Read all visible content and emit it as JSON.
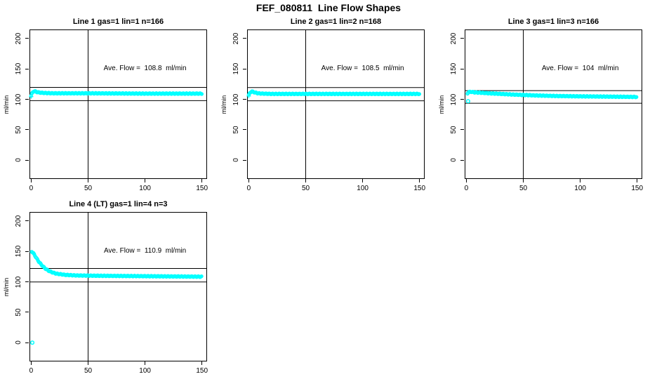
{
  "window": {
    "title": "FEF_080811  Line Flow Shapes"
  },
  "colors": {
    "series": "#00ffff",
    "axis": "#000000",
    "background": "#ffffff"
  },
  "axes": {
    "xticks": [
      0,
      50,
      100,
      150
    ],
    "yticks": [
      0,
      50,
      100,
      150,
      200
    ],
    "xlim": [
      -1.5,
      154.5
    ],
    "ylim": [
      -31,
      215
    ],
    "ylabel": "ml/min",
    "xlabel": "",
    "vline_x": 50,
    "annotation_anchor": [
      100,
      150
    ],
    "grid": false
  },
  "chart_data": [
    {
      "type": "scatter",
      "title": "Line 1 gas=1 lin=1 n=166",
      "annotation": "Ave. Flow =  108.8  ml/min",
      "ave_flow": 108.8,
      "n": 166,
      "hlines": [
        97.9,
        119.7
      ],
      "marker_start": "plus",
      "profile": [
        [
          0,
          106
        ],
        [
          1,
          111
        ],
        [
          2,
          113
        ],
        [
          3,
          113.5
        ],
        [
          5,
          112
        ],
        [
          8,
          111
        ],
        [
          12,
          110.5
        ],
        [
          20,
          110
        ],
        [
          50,
          110
        ],
        [
          100,
          109.5
        ],
        [
          150,
          109.5
        ]
      ],
      "outliers": []
    },
    {
      "type": "scatter",
      "title": "Line 2 gas=1 lin=2 n=168",
      "annotation": "Ave. Flow =  108.5  ml/min",
      "ave_flow": 108.5,
      "n": 168,
      "hlines": [
        97.7,
        119.4
      ],
      "marker_start": "plus",
      "profile": [
        [
          0,
          107
        ],
        [
          1,
          111
        ],
        [
          2,
          112.5
        ],
        [
          3,
          113
        ],
        [
          5,
          111.5
        ],
        [
          8,
          110
        ],
        [
          12,
          109.5
        ],
        [
          20,
          109
        ],
        [
          50,
          109
        ],
        [
          100,
          109
        ],
        [
          150,
          109
        ]
      ],
      "outliers": []
    },
    {
      "type": "scatter",
      "title": "Line 3 gas=1 lin=3 n=166",
      "annotation": "Ave. Flow =  104  ml/min",
      "ave_flow": 104,
      "n": 166,
      "hlines": [
        93.6,
        114.4
      ],
      "marker_start": null,
      "profile": [
        [
          1,
          110
        ],
        [
          2,
          112
        ],
        [
          4,
          112.5
        ],
        [
          7,
          111.5
        ],
        [
          12,
          111
        ],
        [
          20,
          110
        ],
        [
          40,
          108
        ],
        [
          60,
          106.5
        ],
        [
          80,
          105.5
        ],
        [
          100,
          105
        ],
        [
          125,
          104.5
        ],
        [
          150,
          104
        ]
      ],
      "outliers": [
        [
          1.5,
          97
        ]
      ]
    },
    {
      "type": "scatter",
      "title": "Line 4 (LT) gas=1 lin=4 n=3",
      "annotation": "Ave. Flow =  110.9  ml/min",
      "ave_flow": 110.9,
      "n": 3,
      "hlines": [
        99.8,
        122.0
      ],
      "marker_start": null,
      "profile": [
        [
          0.5,
          150
        ],
        [
          2,
          147
        ],
        [
          4,
          141
        ],
        [
          6,
          135
        ],
        [
          9,
          128
        ],
        [
          12,
          122.5
        ],
        [
          15,
          118.5
        ],
        [
          18,
          116
        ],
        [
          22,
          113.5
        ],
        [
          26,
          112.5
        ],
        [
          30,
          111.5
        ],
        [
          40,
          110.5
        ],
        [
          60,
          110
        ],
        [
          90,
          109.5
        ],
        [
          120,
          109
        ],
        [
          150,
          108.5
        ]
      ],
      "outliers": [
        [
          1,
          0
        ]
      ]
    }
  ]
}
